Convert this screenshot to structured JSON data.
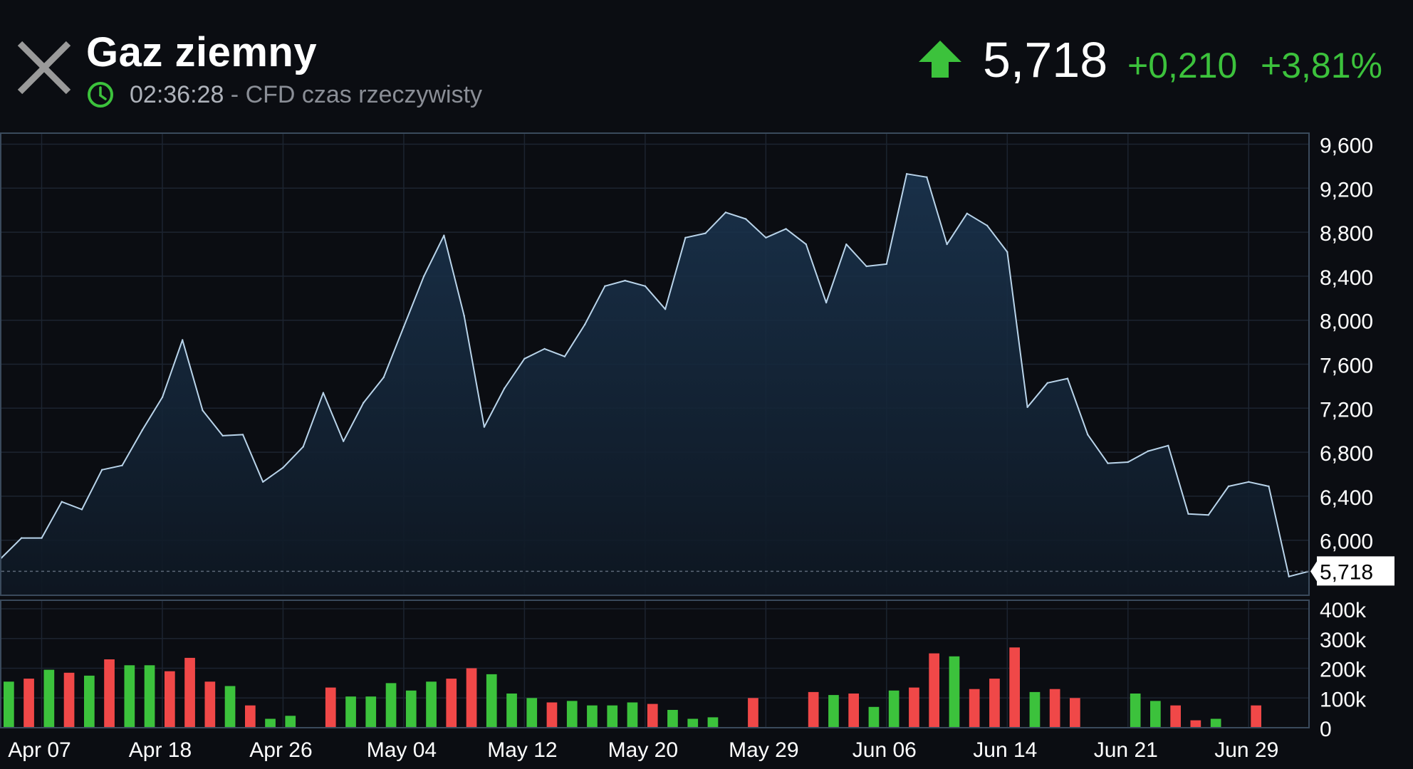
{
  "header": {
    "title": "Gaz ziemny",
    "time": "02:36:28",
    "subtitle_suffix": " - CFD czas rzeczywisty",
    "price": "5,718",
    "change": "+0,210",
    "change_pct": "+3,81%",
    "up_color": "#3cc23c",
    "down_color": "#f04848"
  },
  "icons": {
    "close": "close-icon",
    "clock": "clock-icon",
    "trend": "arrow-up-icon"
  },
  "chart_data": {
    "type": "area",
    "price": {
      "ylim": [
        5500,
        9700
      ],
      "yticks": [
        6000,
        6400,
        6800,
        7200,
        7600,
        8000,
        8400,
        8800,
        9200,
        9600
      ],
      "ytick_labels": [
        "6,000",
        "6,400",
        "6,800",
        "7,200",
        "7,600",
        "8,000",
        "8,400",
        "8,800",
        "9,200",
        "9,600"
      ],
      "current_value": 5718,
      "current_label": "5,718",
      "values": [
        5840,
        6020,
        6020,
        6350,
        6280,
        6640,
        6680,
        7000,
        7300,
        7820,
        7180,
        6950,
        6960,
        6530,
        6660,
        6850,
        7340,
        6900,
        7250,
        7480,
        7940,
        8400,
        8770,
        8040,
        7030,
        7380,
        7650,
        7740,
        7670,
        7960,
        8310,
        8360,
        8310,
        8100,
        8750,
        8790,
        8980,
        8920,
        8750,
        8830,
        8690,
        8160,
        8690,
        8490,
        8510,
        9330,
        9300,
        8690,
        8970,
        8860,
        8620,
        7210,
        7430,
        7470,
        6960,
        6700,
        6710,
        6810,
        6860,
        6240,
        6230,
        6490,
        6530,
        6490,
        5670,
        5718
      ]
    },
    "volume": {
      "ylim": [
        0,
        400000
      ],
      "yticks": [
        0,
        100000,
        200000,
        300000,
        400000
      ],
      "ytick_labels": [
        "0",
        "100k",
        "200k",
        "300k",
        "400k"
      ],
      "values": [
        155000,
        165000,
        195000,
        185000,
        175000,
        230000,
        210000,
        210000,
        190000,
        235000,
        155000,
        140000,
        75000,
        30000,
        40000,
        0,
        135000,
        105000,
        105000,
        150000,
        125000,
        155000,
        165000,
        200000,
        180000,
        115000,
        100000,
        85000,
        90000,
        75000,
        75000,
        85000,
        80000,
        60000,
        30000,
        35000,
        0,
        100000,
        0,
        0,
        120000,
        110000,
        115000,
        70000,
        125000,
        135000,
        250000,
        240000,
        130000,
        165000,
        270000,
        120000,
        130000,
        100000,
        0,
        0,
        115000,
        90000,
        75000,
        25000,
        30000,
        0,
        75000,
        0,
        0,
        0
      ],
      "colors": [
        "g",
        "r",
        "g",
        "r",
        "g",
        "r",
        "g",
        "g",
        "r",
        "r",
        "r",
        "g",
        "r",
        "g",
        "g",
        "g",
        "r",
        "g",
        "g",
        "g",
        "g",
        "g",
        "r",
        "r",
        "g",
        "g",
        "g",
        "r",
        "g",
        "g",
        "g",
        "g",
        "r",
        "g",
        "g",
        "g",
        "g",
        "r",
        "g",
        "g",
        "r",
        "g",
        "r",
        "g",
        "g",
        "r",
        "r",
        "g",
        "r",
        "r",
        "r",
        "g",
        "r",
        "r",
        "g",
        "g",
        "g",
        "g",
        "r",
        "r",
        "g",
        "g",
        "r",
        "g",
        "g",
        "g"
      ]
    },
    "x_tick_labels": [
      "Apr 07",
      "Apr 18",
      "Apr 26",
      "May 04",
      "May 12",
      "May 20",
      "May 29",
      "Jun 06",
      "Jun 14",
      "Jun 21",
      "Jun 29"
    ],
    "x_tick_indices": [
      2,
      8,
      14,
      20,
      26,
      32,
      38,
      44,
      50,
      56,
      62
    ],
    "grid": true
  }
}
